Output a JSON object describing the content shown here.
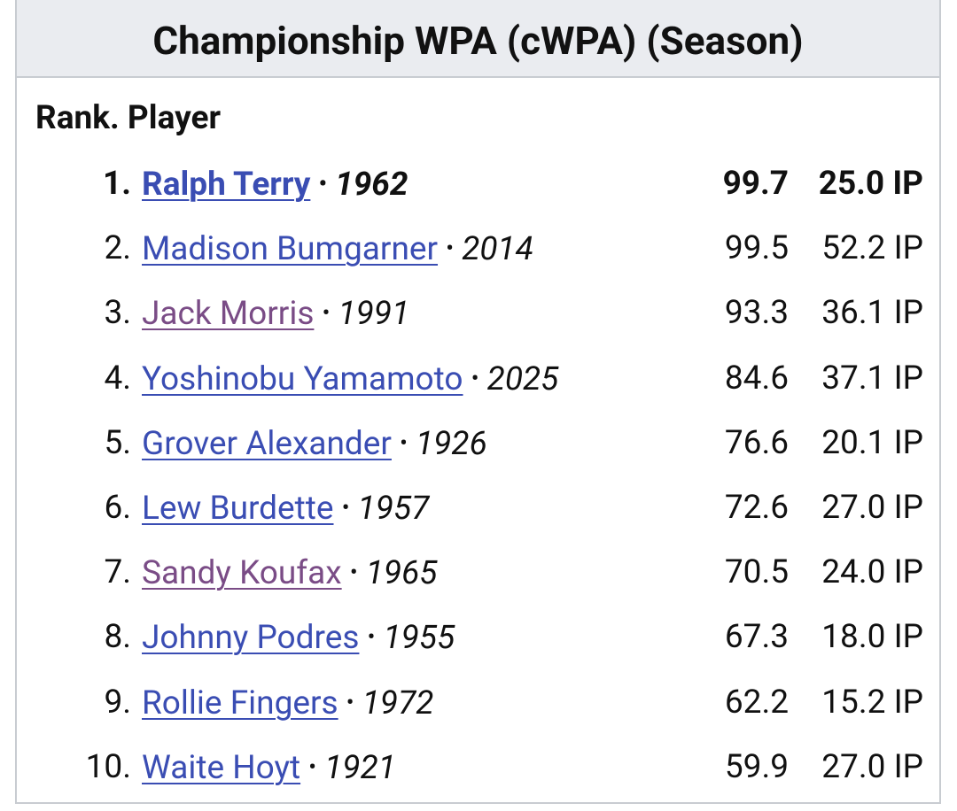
{
  "header": {
    "title": "Championship WPA (cWPA) (Season)"
  },
  "table": {
    "heading": "Rank. Player",
    "separator": "•",
    "rows": [
      {
        "rank": "1.",
        "player": "Ralph Terry",
        "year": "1962",
        "cwpa": "99.7",
        "ip": "25.0 IP",
        "visited": false,
        "bold": true
      },
      {
        "rank": "2.",
        "player": "Madison Bumgarner",
        "year": "2014",
        "cwpa": "99.5",
        "ip": "52.2 IP",
        "visited": false,
        "bold": false
      },
      {
        "rank": "3.",
        "player": "Jack Morris",
        "year": "1991",
        "cwpa": "93.3",
        "ip": "36.1 IP",
        "visited": true,
        "bold": false
      },
      {
        "rank": "4.",
        "player": "Yoshinobu Yamamoto",
        "year": "2025",
        "cwpa": "84.6",
        "ip": "37.1 IP",
        "visited": false,
        "bold": false
      },
      {
        "rank": "5.",
        "player": "Grover Alexander",
        "year": "1926",
        "cwpa": "76.6",
        "ip": "20.1 IP",
        "visited": false,
        "bold": false
      },
      {
        "rank": "6.",
        "player": "Lew Burdette",
        "year": "1957",
        "cwpa": "72.6",
        "ip": "27.0 IP",
        "visited": false,
        "bold": false
      },
      {
        "rank": "7.",
        "player": "Sandy Koufax",
        "year": "1965",
        "cwpa": "70.5",
        "ip": "24.0 IP",
        "visited": true,
        "bold": false
      },
      {
        "rank": "8.",
        "player": "Johnny Podres",
        "year": "1955",
        "cwpa": "67.3",
        "ip": "18.0 IP",
        "visited": false,
        "bold": false
      },
      {
        "rank": "9.",
        "player": "Rollie Fingers",
        "year": "1972",
        "cwpa": "62.2",
        "ip": "15.2 IP",
        "visited": false,
        "bold": false
      },
      {
        "rank": "10.",
        "player": "Waite Hoyt",
        "year": "1921",
        "cwpa": "59.9",
        "ip": "27.0 IP",
        "visited": false,
        "bold": false
      }
    ]
  }
}
